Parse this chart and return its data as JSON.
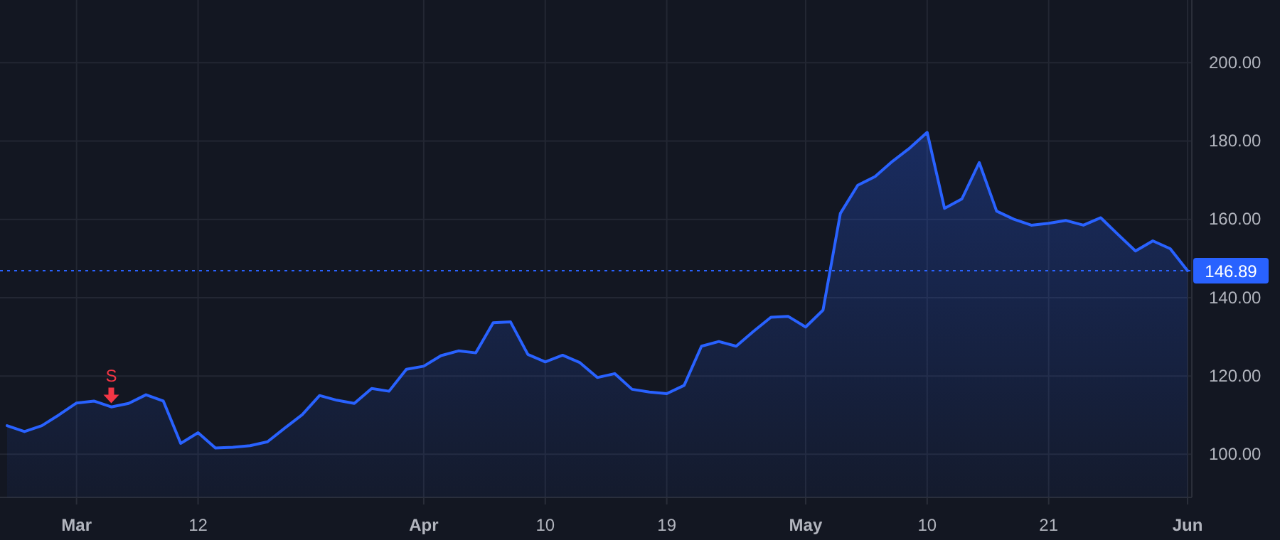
{
  "chart_data": {
    "type": "area",
    "categories": [
      null,
      null,
      null,
      null,
      "Mar",
      null,
      null,
      null,
      null,
      null,
      null,
      "12",
      null,
      null,
      null,
      null,
      null,
      null,
      null,
      null,
      null,
      null,
      null,
      null,
      "Apr",
      null,
      null,
      null,
      null,
      null,
      null,
      "10",
      null,
      null,
      null,
      null,
      null,
      null,
      "19",
      null,
      null,
      null,
      null,
      null,
      null,
      null,
      "May",
      null,
      null,
      null,
      null,
      null,
      null,
      "10",
      null,
      null,
      null,
      null,
      null,
      null,
      "21",
      null,
      null,
      null,
      null,
      null,
      null,
      null,
      "Jun"
    ],
    "series": [
      {
        "color": "#2962ff",
        "values": [
          107.3,
          105.8,
          107.3,
          110.1,
          113.1,
          113.6,
          112.1,
          113.0,
          115.2,
          113.6,
          102.8,
          105.5,
          101.6,
          101.8,
          102.2,
          103.2,
          106.7,
          110.1,
          115.0,
          113.8,
          113.0,
          116.8,
          116.1,
          121.7,
          122.5,
          125.2,
          126.4,
          125.9,
          133.6,
          133.8,
          125.5,
          123.6,
          125.3,
          123.4,
          119.6,
          120.6,
          116.6,
          115.9,
          115.5,
          117.6,
          127.6,
          128.8,
          127.6,
          131.4,
          135.0,
          135.2,
          132.5,
          136.8,
          161.5,
          168.7,
          170.9,
          174.8,
          178.2,
          182.2,
          162.8,
          165.2,
          174.5,
          162.1,
          160.0,
          158.5,
          159.0,
          159.7,
          158.5,
          160.4,
          156.1,
          151.9,
          154.5,
          152.5,
          146.89
        ]
      },
      {
        "type": "scatter",
        "name": "S",
        "color": "#f23645",
        "marker": "triangle",
        "values": [
          null,
          null,
          null,
          null,
          null,
          null,
          114.5,
          null,
          null,
          null,
          null,
          null,
          null,
          null,
          null,
          null,
          null,
          null,
          null,
          null,
          null,
          null,
          null,
          null,
          null,
          null,
          null,
          null,
          null,
          null,
          null,
          null,
          null,
          null,
          null,
          null,
          null,
          null,
          null,
          null,
          null,
          null,
          null,
          null,
          null,
          null,
          null,
          null,
          null,
          null,
          null,
          null,
          null,
          null,
          null,
          null,
          null,
          null,
          null,
          null,
          null,
          null,
          null,
          null,
          null,
          null,
          null,
          null,
          null
        ]
      }
    ],
    "ylim": [
      89,
      216
    ],
    "yticks": [
      {
        "value": 100,
        "label": "100.00"
      },
      {
        "value": 120,
        "label": "120.00"
      },
      {
        "value": 140,
        "label": "140.00"
      },
      {
        "value": 160,
        "label": "160.00"
      },
      {
        "value": 180,
        "label": "180.00"
      },
      {
        "value": 200,
        "label": "200.00"
      }
    ],
    "grid": true,
    "ref_lines": [
      {
        "axis": "y",
        "value": 146.89,
        "label": "146.89",
        "color": "#2962ff",
        "line_style": "dotted"
      }
    ]
  }
}
